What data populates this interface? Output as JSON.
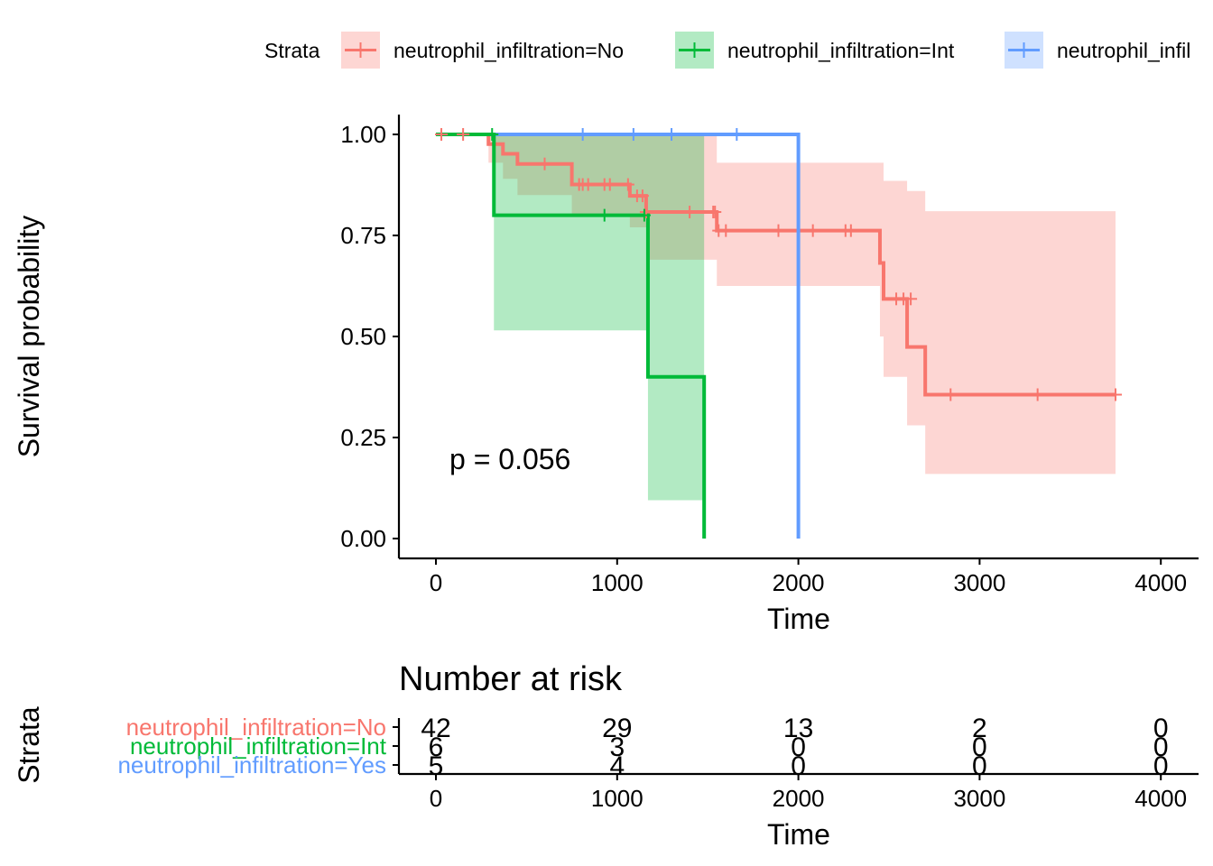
{
  "legend": {
    "title": "Strata",
    "entries": [
      {
        "label": "neutrophil_infiltration=No",
        "color": "#F8766D"
      },
      {
        "label": "neutrophil_infiltration=Int",
        "color": "#00BA38"
      },
      {
        "label": "neutrophil_infil",
        "color": "#619CFF"
      }
    ]
  },
  "chart_data": [
    {
      "type": "line",
      "subtype": "kaplan-meier step",
      "xlabel": "Time",
      "ylabel": "Survival probability",
      "xlim": [
        -200,
        4200
      ],
      "ylim": [
        -0.05,
        1.05
      ],
      "xticks": [
        0,
        1000,
        2000,
        3000,
        4000
      ],
      "yticks": [
        0.0,
        0.25,
        0.5,
        0.75,
        1.0
      ],
      "ytick_labels": [
        "0.00",
        "0.25",
        "0.50",
        "0.75",
        "1.00"
      ],
      "grid": false,
      "legend_position": "top",
      "annotation": "p = 0.056",
      "series": [
        {
          "name": "neutrophil_infiltration=No",
          "color": "#F8766D",
          "steps": [
            [
              0,
              1.0
            ],
            [
              290,
              1.0
            ],
            [
              290,
              0.976
            ],
            [
              370,
              0.976
            ],
            [
              370,
              0.952
            ],
            [
              450,
              0.952
            ],
            [
              450,
              0.927
            ],
            [
              750,
              0.927
            ],
            [
              750,
              0.876
            ],
            [
              1070,
              0.876
            ],
            [
              1070,
              0.848
            ],
            [
              1160,
              0.848
            ],
            [
              1160,
              0.808
            ],
            [
              1550,
              0.808
            ],
            [
              1550,
              0.762
            ],
            [
              2450,
              0.762
            ],
            [
              2450,
              0.682
            ],
            [
              2470,
              0.682
            ],
            [
              2470,
              0.593
            ],
            [
              2600,
              0.593
            ],
            [
              2600,
              0.474
            ],
            [
              2700,
              0.474
            ],
            [
              2700,
              0.356
            ],
            [
              3750,
              0.356
            ]
          ],
          "ci_upper": [
            [
              0,
              1.0
            ],
            [
              290,
              1.0
            ],
            [
              370,
              1.0
            ],
            [
              450,
              1.0
            ],
            [
              750,
              1.0
            ],
            [
              1070,
              1.0
            ],
            [
              1160,
              1.0
            ],
            [
              1550,
              0.93
            ],
            [
              2450,
              0.93
            ],
            [
              2470,
              0.885
            ],
            [
              2600,
              0.86
            ],
            [
              2700,
              0.81
            ],
            [
              3750,
              0.81
            ]
          ],
          "ci_lower": [
            [
              0,
              1.0
            ],
            [
              290,
              0.93
            ],
            [
              370,
              0.89
            ],
            [
              450,
              0.85
            ],
            [
              750,
              0.8
            ],
            [
              1070,
              0.77
            ],
            [
              1160,
              0.69
            ],
            [
              1550,
              0.625
            ],
            [
              2450,
              0.5
            ],
            [
              2470,
              0.4
            ],
            [
              2600,
              0.28
            ],
            [
              2700,
              0.16
            ],
            [
              3750,
              0.16
            ]
          ],
          "censor_times": [
            30,
            150,
            600,
            790,
            810,
            840,
            930,
            960,
            1060,
            1110,
            1140,
            1160,
            1400,
            1530,
            1540,
            1560,
            1600,
            1890,
            2080,
            2260,
            2290,
            2540,
            2580,
            2620,
            2840,
            3320,
            3750
          ],
          "censor_values": [
            1.0,
            1.0,
            0.927,
            0.876,
            0.876,
            0.876,
            0.876,
            0.876,
            0.876,
            0.848,
            0.848,
            0.808,
            0.808,
            0.808,
            0.808,
            0.762,
            0.762,
            0.762,
            0.762,
            0.762,
            0.762,
            0.593,
            0.593,
            0.593,
            0.356,
            0.356,
            0.356
          ]
        },
        {
          "name": "neutrophil_infiltration=Int",
          "color": "#00BA38",
          "steps": [
            [
              0,
              1.0
            ],
            [
              320,
              1.0
            ],
            [
              320,
              0.8
            ],
            [
              1170,
              0.8
            ],
            [
              1170,
              0.4
            ],
            [
              1480,
              0.4
            ],
            [
              1480,
              0.0
            ]
          ],
          "ci_upper": [
            [
              0,
              1.0
            ],
            [
              320,
              1.0
            ],
            [
              1170,
              1.0
            ],
            [
              1480,
              1.0
            ]
          ],
          "ci_lower": [
            [
              0,
              1.0
            ],
            [
              320,
              0.515
            ],
            [
              1170,
              0.095
            ],
            [
              1480,
              0.095
            ]
          ],
          "censor_times": [
            310,
            930,
            1150
          ],
          "censor_values": [
            1.0,
            0.8,
            0.8
          ]
        },
        {
          "name": "neutrophil_infiltration=Yes",
          "color": "#619CFF",
          "steps": [
            [
              0,
              1.0
            ],
            [
              2000,
              1.0
            ],
            [
              2000,
              0.0
            ]
          ],
          "censor_times": [
            810,
            1090,
            1300,
            1660
          ],
          "censor_values": [
            1.0,
            1.0,
            1.0,
            1.0
          ]
        }
      ]
    },
    {
      "type": "table",
      "title": "Number at risk",
      "xlabel": "Time",
      "ylabel": "Strata",
      "xticks": [
        0,
        1000,
        2000,
        3000,
        4000
      ],
      "rows": [
        {
          "label": "neutrophil_infiltration=No",
          "color": "#F8766D",
          "values": [
            "42",
            "29",
            "13",
            "2",
            "0"
          ]
        },
        {
          "label": "neutrophil_infiltration=Int",
          "color": "#00BA38",
          "values": [
            "6",
            "3",
            "0",
            "0",
            "0"
          ]
        },
        {
          "label": "neutrophil_infiltration=Yes",
          "color": "#619CFF",
          "values": [
            "5",
            "4",
            "0",
            "0",
            "0"
          ]
        }
      ]
    }
  ]
}
